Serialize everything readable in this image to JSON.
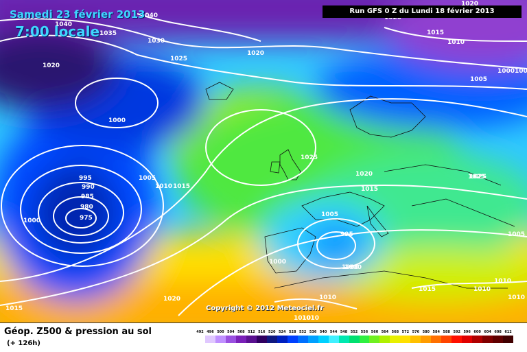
{
  "header": {
    "date": "Samedi 23 février 2013",
    "time": "7:00 locale",
    "run": "Run GFS 0 Z du Lundi 18 février 2013"
  },
  "copyright": "Copyright © 2012 Meteociel.fr",
  "legend": {
    "title": "Géop. Z500 & pression au sol",
    "subtitle": "(+ 126h)",
    "scale": [
      {
        "value": "492",
        "color": "#ffffff"
      },
      {
        "value": "496",
        "color": "#e0c8ff"
      },
      {
        "value": "500",
        "color": "#c090ff"
      },
      {
        "value": "504",
        "color": "#9a50e0"
      },
      {
        "value": "508",
        "color": "#7a20b8"
      },
      {
        "value": "512",
        "color": "#5a1090"
      },
      {
        "value": "516",
        "color": "#300060"
      },
      {
        "value": "520",
        "color": "#101880"
      },
      {
        "value": "524",
        "color": "#0020c0"
      },
      {
        "value": "528",
        "color": "#0040ff"
      },
      {
        "value": "532",
        "color": "#0070ff"
      },
      {
        "value": "536",
        "color": "#00a0ff"
      },
      {
        "value": "540",
        "color": "#00d0ff"
      },
      {
        "value": "544",
        "color": "#40f0ff"
      },
      {
        "value": "548",
        "color": "#00e8b0"
      },
      {
        "value": "552",
        "color": "#00e070"
      },
      {
        "value": "556",
        "color": "#30f040"
      },
      {
        "value": "560",
        "color": "#70f020"
      },
      {
        "value": "564",
        "color": "#b0f000"
      },
      {
        "value": "568",
        "color": "#e8f000"
      },
      {
        "value": "572",
        "color": "#ffe000"
      },
      {
        "value": "576",
        "color": "#ffc000"
      },
      {
        "value": "580",
        "color": "#ff9c00"
      },
      {
        "value": "584",
        "color": "#ff7000"
      },
      {
        "value": "588",
        "color": "#ff4400"
      },
      {
        "value": "592",
        "color": "#ff1000"
      },
      {
        "value": "596",
        "color": "#e00000"
      },
      {
        "value": "600",
        "color": "#b00000"
      },
      {
        "value": "604",
        "color": "#800000"
      },
      {
        "value": "608",
        "color": "#600000"
      },
      {
        "value": "612",
        "color": "#400000"
      }
    ]
  },
  "isobar_labels": [
    "1040",
    "1040",
    "1035",
    "1030",
    "1025",
    "1020",
    "1020",
    "1020",
    "1015",
    "1010",
    "1005",
    "1000",
    "1000",
    "1000",
    "995",
    "990",
    "985",
    "980",
    "975",
    "1000",
    "1005",
    "1010",
    "1015",
    "1020",
    "1025",
    "1025",
    "1020",
    "1015",
    "1005",
    "995",
    "1000",
    "1000",
    "1020",
    "1015",
    "1010",
    "1010",
    "1015",
    "1010",
    "1010",
    "1010",
    "1005",
    "1025",
    "1000",
    "1010"
  ]
}
